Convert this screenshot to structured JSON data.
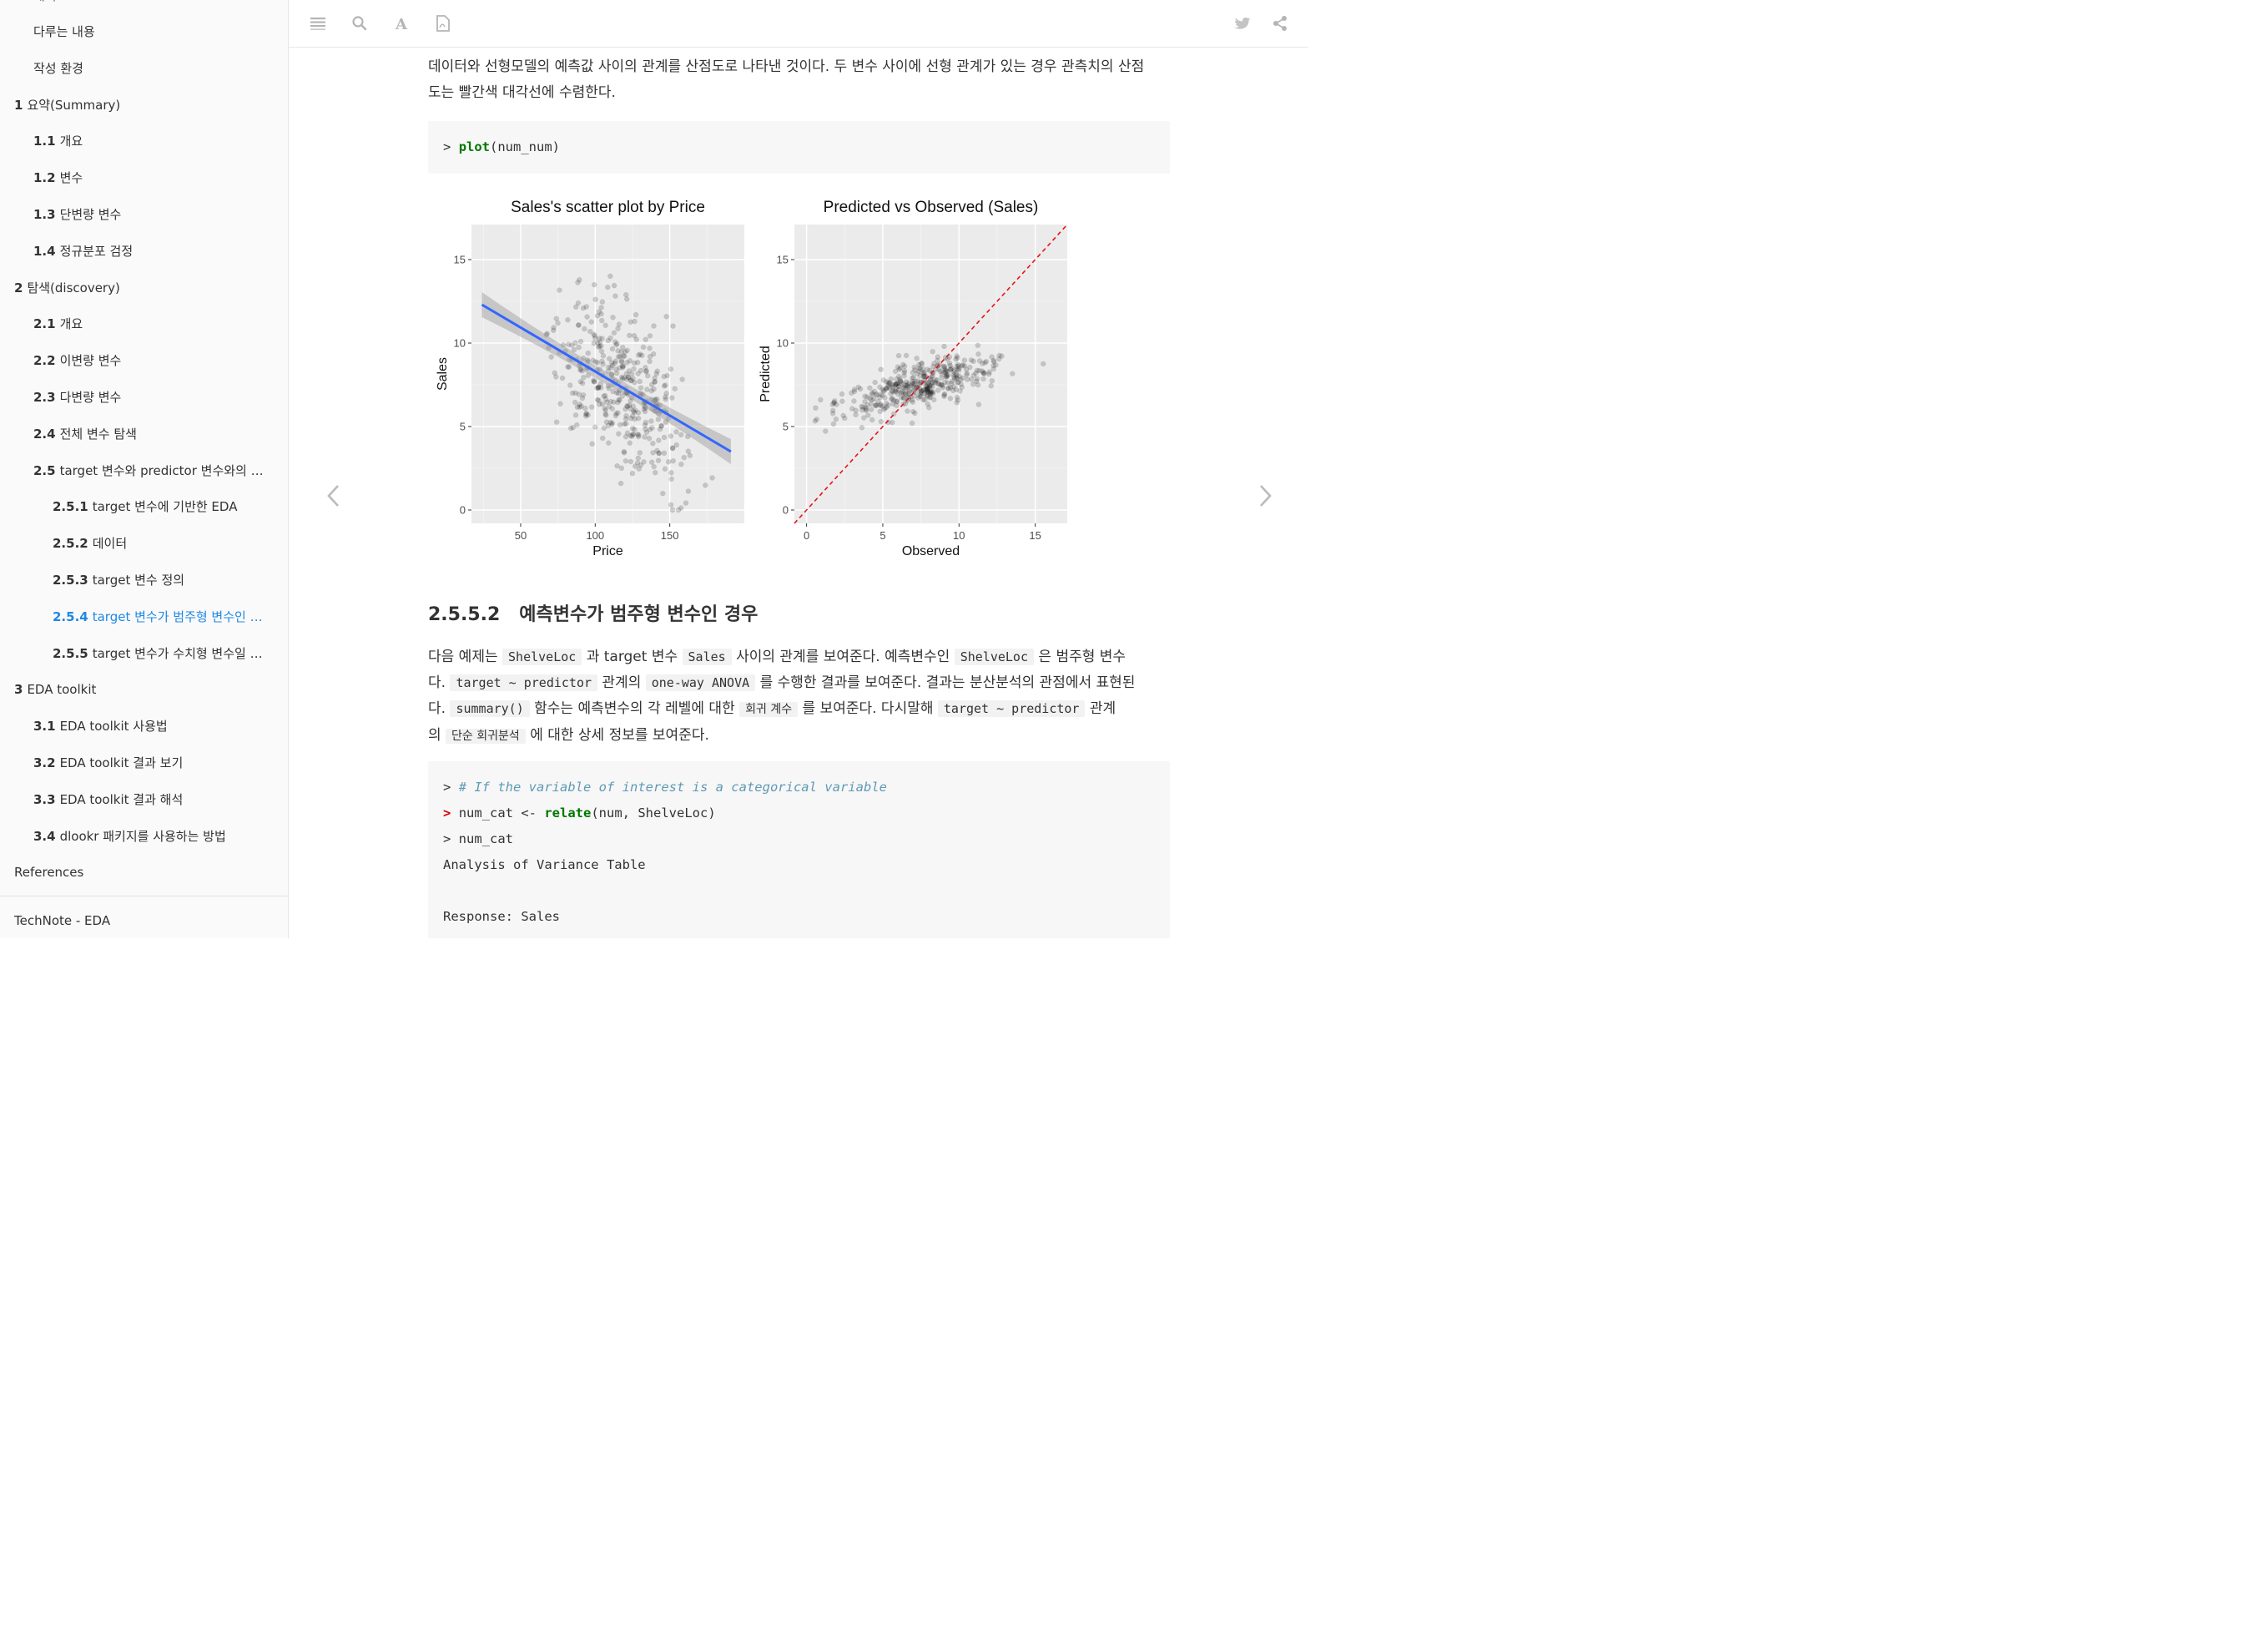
{
  "sidebar": {
    "partial_top": "패키",
    "items": [
      {
        "num": "",
        "label": "다루는 내용",
        "level": 1,
        "active": false
      },
      {
        "num": "",
        "label": "작성 환경",
        "level": 1,
        "active": false
      },
      {
        "num": "1",
        "label": "요약(Summary)",
        "level": 0,
        "active": false
      },
      {
        "num": "1.1",
        "label": "개요",
        "level": 1,
        "active": false
      },
      {
        "num": "1.2",
        "label": "변수",
        "level": 1,
        "active": false
      },
      {
        "num": "1.3",
        "label": "단변량 변수",
        "level": 1,
        "active": false
      },
      {
        "num": "1.4",
        "label": "정규분포 검정",
        "level": 1,
        "active": false
      },
      {
        "num": "2",
        "label": "탐색(discovery)",
        "level": 0,
        "active": false
      },
      {
        "num": "2.1",
        "label": "개요",
        "level": 1,
        "active": false
      },
      {
        "num": "2.2",
        "label": "이변량 변수",
        "level": 1,
        "active": false
      },
      {
        "num": "2.3",
        "label": "다변량 변수",
        "level": 1,
        "active": false
      },
      {
        "num": "2.4",
        "label": "전체 변수 탐색",
        "level": 1,
        "active": false
      },
      {
        "num": "2.5",
        "label": "target 변수와 predictor 변수와의 관계",
        "level": 1,
        "active": false
      },
      {
        "num": "2.5.1",
        "label": "target 변수에 기반한 EDA",
        "level": 2,
        "active": false
      },
      {
        "num": "2.5.2",
        "label": "데이터",
        "level": 2,
        "active": false
      },
      {
        "num": "2.5.3",
        "label": "target 변수 정의",
        "level": 2,
        "active": false
      },
      {
        "num": "2.5.4",
        "label": "target 변수가 범주형 변수인 경...",
        "level": 2,
        "active": true
      },
      {
        "num": "2.5.5",
        "label": "target 변수가 수치형 변수일 때...",
        "level": 2,
        "active": false
      },
      {
        "num": "3",
        "label": "EDA toolkit",
        "level": 0,
        "active": false
      },
      {
        "num": "3.1",
        "label": "EDA toolkit 사용법",
        "level": 1,
        "active": false
      },
      {
        "num": "3.2",
        "label": "EDA toolkit 결과 보기",
        "level": 1,
        "active": false
      },
      {
        "num": "3.3",
        "label": "EDA toolkit 결과 해석",
        "level": 1,
        "active": false
      },
      {
        "num": "3.4",
        "label": "dlookr 패키지를 사용하는 방법",
        "level": 1,
        "active": false
      },
      {
        "num": "",
        "label": "References",
        "level": 0,
        "active": false
      }
    ],
    "footer": "TechNote - EDA"
  },
  "toolbar": {
    "left_icons": [
      "menu-icon",
      "search-icon",
      "font-icon",
      "pdf-icon"
    ],
    "right_icons": [
      "twitter-icon",
      "share-icon"
    ]
  },
  "content": {
    "intro_line1": "데이터와 선형모델의 예측값 사이의 관계를 산점도로 나타낸 것이다. 두 변수 사이에 선형 관계가 있는 경우 관측치의 산점",
    "intro_line2": "도는 빨간색 대각선에 수렴한다.",
    "code1": {
      "prompt": ">",
      "fn": "plot",
      "args": "(num_num)"
    },
    "section_num": "2.5.5.2",
    "section_title": "예측변수가 범주형 변수인 경우",
    "p1": {
      "a": "다음 예제는",
      "c1": "ShelveLoc",
      "b": "과 target 변수",
      "c2": "Sales",
      "c": "사이의 관계를 보여준다. 예측변수인",
      "c3": "ShelveLoc",
      "d": "은 범주형 변수",
      "e": "다.",
      "c4": "target ~ predictor",
      "f": "관계의",
      "c5": "one-way ANOVA",
      "g": "를 수행한 결과를 보여준다. 결과는 분산분석의 관점에서 표현된",
      "h": "다.",
      "c6": "summary()",
      "i": "함수는 예측변수의 각 레벨에 대한",
      "c7": "회귀 계수",
      "j": "를 보여준다. 다시말해",
      "c8": "target ~ predictor",
      "k": "관계",
      "l": "의",
      "c9": "단순 회귀분석",
      "m": "에 대한 상세 정보를 보여준다."
    },
    "code2": {
      "line1_prompt": ">",
      "line1_comment": "# If the variable of interest is a categorical variable",
      "line2_prompt": ">",
      "line2_pre": "num_cat <- ",
      "line2_fn": "relate",
      "line2_post": "(num, ShelveLoc)",
      "line3": "> num_cat",
      "line4": "Analysis of Variance Table",
      "line5": "",
      "line6": "Response: Sales"
    }
  },
  "colors": {
    "accent": "#1e88e5",
    "panel_bg": "#ebebeb",
    "fit_line": "#3366ff",
    "diag_line": "#e8121b"
  },
  "chart_data": [
    {
      "type": "scatter",
      "title": "Sales's scatter plot by Price",
      "xlabel": "Price",
      "ylabel": "Sales",
      "xlim": [
        17,
        200
      ],
      "ylim": [
        -0.8,
        17.1
      ],
      "xticks": [
        50,
        100,
        150
      ],
      "yticks": [
        0,
        5,
        10,
        15
      ],
      "grid": true,
      "fit_line": {
        "x": [
          24,
          191
        ],
        "y": [
          12.3,
          3.5
        ],
        "band_halfwidth_ends": 0.75,
        "band_halfwidth_mid": 0.25
      }
    },
    {
      "type": "scatter",
      "title": "Predicted vs Observed (Sales)",
      "xlabel": "Observed",
      "ylabel": "Predicted",
      "xlim": [
        -0.8,
        17.1
      ],
      "ylim": [
        -0.8,
        17.1
      ],
      "xticks": [
        0,
        5,
        10,
        15
      ],
      "yticks": [
        0,
        5,
        10,
        15
      ],
      "grid": true,
      "reference_line": "y = x"
    }
  ]
}
